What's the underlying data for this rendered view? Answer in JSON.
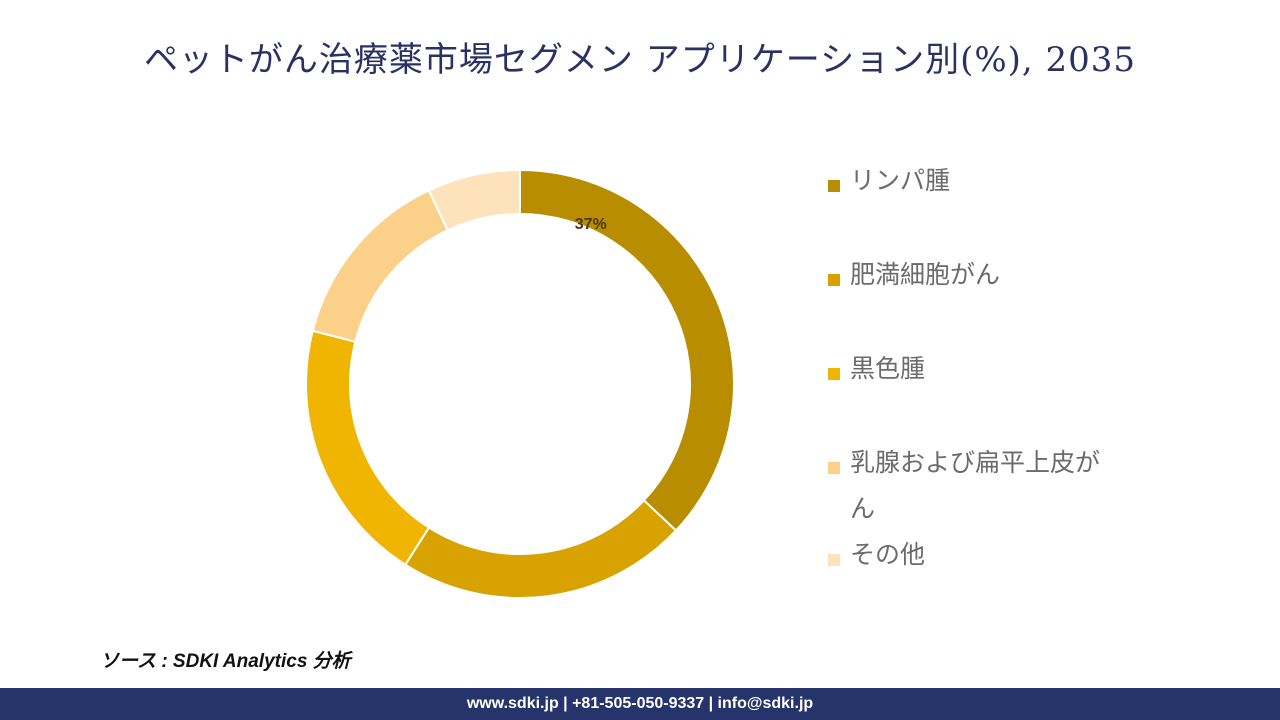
{
  "header": {
    "title": "ペットがん治療薬市場セグメン アプリケーション別(%), 2035"
  },
  "chart_data": {
    "type": "pie",
    "variant": "donut",
    "title": "ペットがん治療薬市場セグメン アプリケーション別(%), 2035",
    "categories": [
      "リンパ腫",
      "肥満細胞がん",
      "黒色腫",
      "乳腺および扁平上皮がん",
      "その他"
    ],
    "values": [
      37,
      22,
      20,
      14,
      7
    ],
    "colors": [
      "#b88d00",
      "#d8a300",
      "#f0b500",
      "#fbd18a",
      "#fde2bc"
    ],
    "data_labels": [
      "37%",
      "",
      "",
      "",
      ""
    ],
    "legend_position": "right"
  },
  "source": {
    "text": "ソース : SDKI Analytics 分析"
  },
  "footer": {
    "contact": "www.sdki.jp | +81-505-050-9337 | info@sdki.jp"
  }
}
